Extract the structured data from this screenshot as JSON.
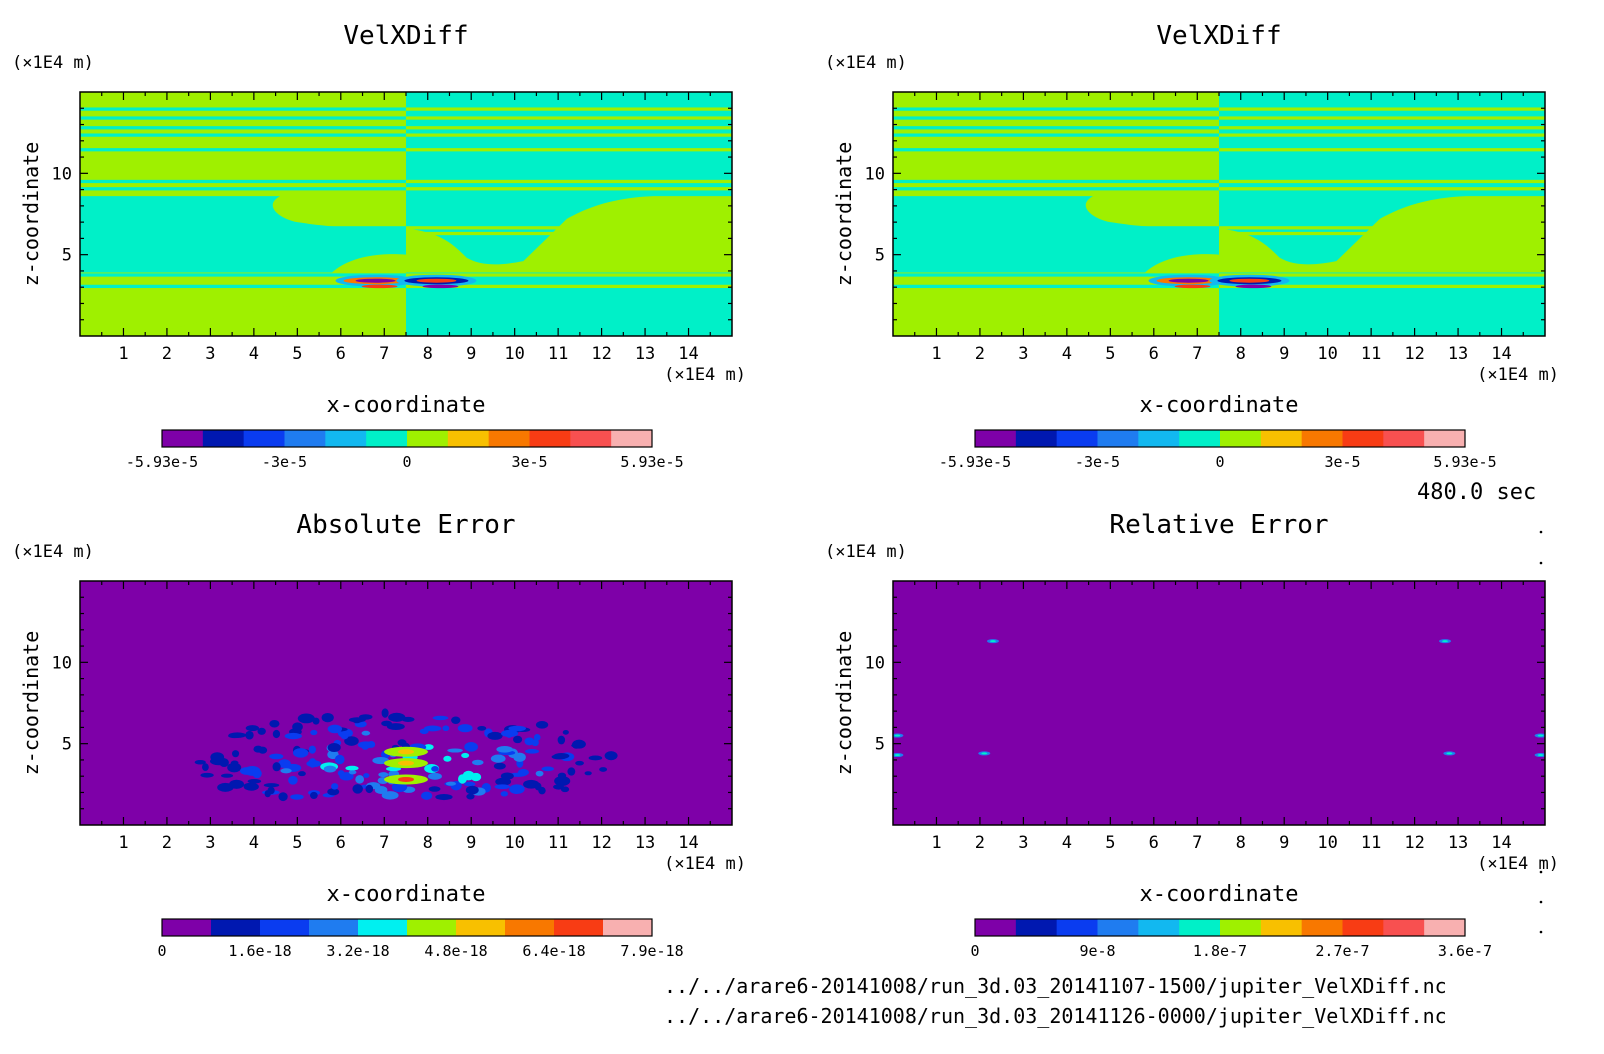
{
  "figure": {
    "time_label": "480.0 sec",
    "files": [
      "../../arare6-20141008/run_3d.03_20141107-1500/jupiter_VelXDiff.nc",
      "../../arare6-20141008/run_3d.03_20141126-0000/jupiter_VelXDiff.nc"
    ]
  },
  "colors": {
    "palette11": [
      "#7e00a8",
      "#0018b0",
      "#0a3cf0",
      "#1f7cf0",
      "#12b8f0",
      "#00f0c8",
      "#9ff000",
      "#f8c000",
      "#f87800",
      "#f83c14",
      "#f85050",
      "#f8b0b0"
    ],
    "palette_abs": [
      "#7e00a8",
      "#0018b0",
      "#0a3cf0",
      "#1f7cf0",
      "#00f0f0",
      "#9ff000",
      "#f8c000",
      "#f87800",
      "#f83c14",
      "#f8b0b0"
    ],
    "cyan": "#00f0c8",
    "green": "#9ff000",
    "purple": "#7e00a8"
  },
  "chart_data": [
    {
      "type": "heatmap",
      "title": "VelXDiff",
      "xlabel": "x-coordinate",
      "ylabel": "z-coordinate",
      "x_unit": "(×1E4 m)",
      "y_unit": "(×1E4 m)",
      "xlim": [
        0,
        15
      ],
      "ylim": [
        0,
        15
      ],
      "x_ticks": [
        "1",
        "2",
        "3",
        "4",
        "5",
        "6",
        "7",
        "8",
        "9",
        "10",
        "11",
        "12",
        "13",
        "14"
      ],
      "y_ticks": [
        "5",
        "10"
      ],
      "colorbar": {
        "min": -5.93e-05,
        "max": 5.93e-05,
        "levels": 11,
        "labels": [
          "-5.93e-5",
          "-3e-5",
          "0",
          "3e-5",
          "5.93e-5"
        ]
      }
    },
    {
      "type": "heatmap",
      "title": "VelXDiff",
      "xlabel": "x-coordinate",
      "ylabel": "z-coordinate",
      "x_unit": "(×1E4 m)",
      "y_unit": "(×1E4 m)",
      "xlim": [
        0,
        15
      ],
      "ylim": [
        0,
        15
      ],
      "x_ticks": [
        "1",
        "2",
        "3",
        "4",
        "5",
        "6",
        "7",
        "8",
        "9",
        "10",
        "11",
        "12",
        "13",
        "14"
      ],
      "y_ticks": [
        "5",
        "10"
      ],
      "colorbar": {
        "min": -5.93e-05,
        "max": 5.93e-05,
        "levels": 11,
        "labels": [
          "-5.93e-5",
          "-3e-5",
          "0",
          "3e-5",
          "5.93e-5"
        ]
      }
    },
    {
      "type": "heatmap",
      "title": "Absolute Error",
      "xlabel": "x-coordinate",
      "ylabel": "z-coordinate",
      "x_unit": "(×1E4 m)",
      "y_unit": "(×1E4 m)",
      "xlim": [
        0,
        15
      ],
      "ylim": [
        0,
        15
      ],
      "x_ticks": [
        "1",
        "2",
        "3",
        "4",
        "5",
        "6",
        "7",
        "8",
        "9",
        "10",
        "11",
        "12",
        "13",
        "14"
      ],
      "y_ticks": [
        "5",
        "10"
      ],
      "colorbar": {
        "min": 0,
        "max": 7.9e-18,
        "levels": 10,
        "labels": [
          "0",
          "1.6e-18",
          "3.2e-18",
          "4.8e-18",
          "6.4e-18",
          "7.9e-18"
        ]
      }
    },
    {
      "type": "heatmap",
      "title": "Relative Error",
      "xlabel": "x-coordinate",
      "ylabel": "z-coordinate",
      "x_unit": "(×1E4 m)",
      "y_unit": "(×1E4 m)",
      "xlim": [
        0,
        15
      ],
      "ylim": [
        0,
        15
      ],
      "x_ticks": [
        "1",
        "2",
        "3",
        "4",
        "5",
        "6",
        "7",
        "8",
        "9",
        "10",
        "11",
        "12",
        "13",
        "14"
      ],
      "y_ticks": [
        "5",
        "10"
      ],
      "colorbar": {
        "min": 0,
        "max": 3.6e-07,
        "levels": 11,
        "labels": [
          "0",
          "9e-8",
          "1.8e-7",
          "2.7e-7",
          "3.6e-7"
        ]
      }
    }
  ]
}
